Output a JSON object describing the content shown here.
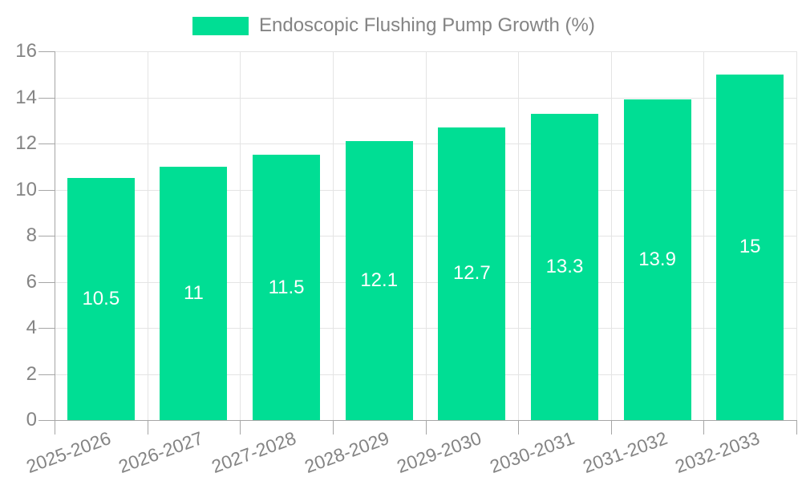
{
  "legend": {
    "label": "Endoscopic Flushing Pump Growth (%)"
  },
  "colors": {
    "bar": "#00de94",
    "bar_label": "#ffffff",
    "grid": "#e4e4e4",
    "axis": "#a6a6a6",
    "tick_text": "#848484",
    "legend_text": "#848484",
    "background": "#ffffff"
  },
  "chart_data": {
    "type": "bar",
    "title": "Endoscopic Flushing Pump Growth (%)",
    "categories": [
      "2025-2026",
      "2026-2027",
      "2027-2028",
      "2028-2029",
      "2029-2030",
      "2030-2031",
      "2031-2032",
      "2032-2033"
    ],
    "values": [
      10.5,
      11,
      11.5,
      12.1,
      12.7,
      13.3,
      13.9,
      15
    ],
    "xlabel": "",
    "ylabel": "",
    "ylim": [
      0,
      16
    ],
    "ytick_interval": 2,
    "grid": "on",
    "legend_position": "top-center",
    "value_label_position": "inside-middle",
    "x_label_rotation_deg": -20
  }
}
